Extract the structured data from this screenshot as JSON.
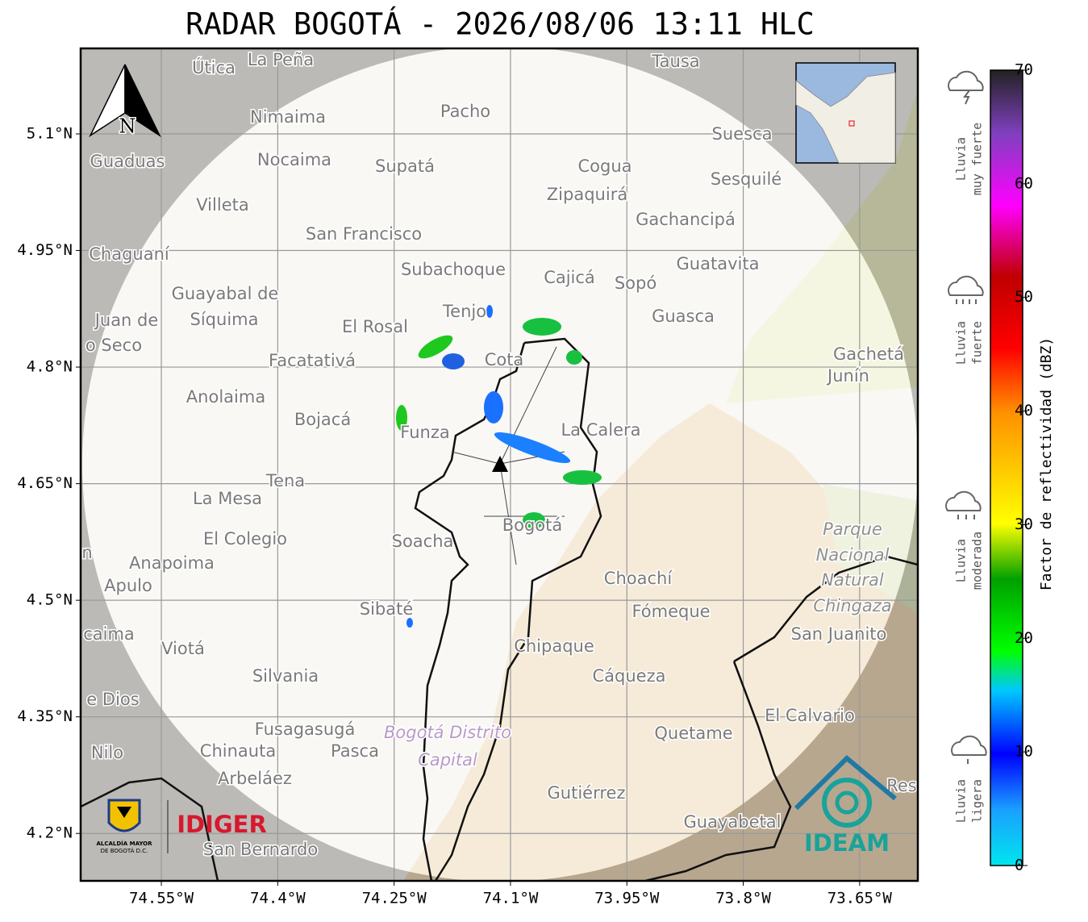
{
  "title": "RADAR BOGOTÁ - 2026/08/06 13:11 HLC",
  "map": {
    "xlim": [
      -74.654,
      -73.575
    ],
    "ylim": [
      4.139,
      5.21
    ],
    "xticks": [
      {
        "value": -74.55,
        "label": "74.55°W"
      },
      {
        "value": -74.4,
        "label": "74.4°W"
      },
      {
        "value": -74.25,
        "label": "74.25°W"
      },
      {
        "value": -74.1,
        "label": "74.1°W"
      },
      {
        "value": -73.95,
        "label": "73.95°W"
      },
      {
        "value": -73.8,
        "label": "73.8°W"
      },
      {
        "value": -73.65,
        "label": "73.65°W"
      }
    ],
    "yticks": [
      {
        "value": 5.1,
        "label": "5.1°N"
      },
      {
        "value": 4.95,
        "label": "4.95°N"
      },
      {
        "value": 4.8,
        "label": "4.8°N"
      },
      {
        "value": 4.65,
        "label": "4.65°N"
      },
      {
        "value": 4.5,
        "label": "4.5°N"
      },
      {
        "value": 4.35,
        "label": "4.35°N"
      },
      {
        "value": 4.2,
        "label": "4.2°N"
      }
    ],
    "grid": true,
    "north_label": "N",
    "places": [
      "La Peña",
      "Útica",
      "Tausa",
      "Pacho",
      "Nimaima",
      "Guaduas",
      "Nocaima",
      "Supatá",
      "Cogua",
      "Suesca",
      "Sesquilé",
      "Villeta",
      "Zipaquirá",
      "Gachancipá",
      "San Francisco",
      "Chaguaní",
      "Guatavita",
      "Subachoque",
      "Cajicá",
      "Sopó",
      "Guayabal de",
      "Síquima",
      "Tenjo",
      "Guasca",
      "El Rosal",
      "Juan de",
      "o Seco",
      "Facatativá",
      "Cota",
      "Gachetá",
      "Junín",
      "Anolaima",
      "Bojacá",
      "Funza",
      "La Calera",
      "Tena",
      "La Mesa",
      "El Colegio",
      "Soacha",
      "Bogotá",
      "Parque",
      "Nacional",
      "Natural",
      "Chingaza",
      "Anapoima",
      "Apulo",
      "Choachí",
      "Sibaté",
      "Fómeque",
      "San Juanito",
      "caima",
      "Viotá",
      "Chipaque",
      "Silvania",
      "Cáqueza",
      "e Dios",
      "El Calvario",
      "Fusagasugá",
      "Bogotá Distrito",
      "Capital",
      "Quetame",
      "Nilo",
      "Chinauta",
      "Pasca",
      "Arbeláez",
      "Gutiérrez",
      "Res",
      "Guayabetal",
      "San Bernardo",
      "n"
    ]
  },
  "colorbar": {
    "label": "Factor de reflectividad (dBZ)",
    "clim": [
      0,
      70
    ],
    "ticks": [
      0,
      10,
      20,
      30,
      40,
      50,
      60,
      70
    ]
  },
  "legend": [
    {
      "lines": [
        "Lluvia",
        "muy fuerte"
      ]
    },
    {
      "lines": [
        "Lluvia",
        "fuerte"
      ]
    },
    {
      "lines": [
        "Lluvia",
        "moderada"
      ]
    },
    {
      "lines": [
        "Lluvia",
        "ligera"
      ]
    }
  ],
  "logos": {
    "alcaldia": [
      "ALCALDÍA MAYOR",
      "DE BOGOTÁ D.C."
    ],
    "idiger": "IDIGER",
    "ideam": "IDEAM"
  }
}
